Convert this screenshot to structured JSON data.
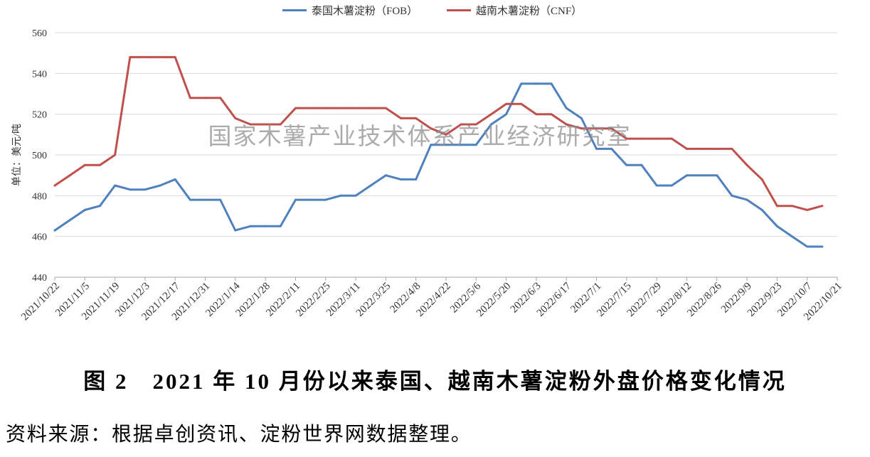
{
  "chart_data": {
    "type": "line",
    "title": "图 2　2021 年 10 月份以来泰国、越南木薯淀粉外盘价格变化情况",
    "xlabel": "",
    "ylabel": "单位：美元/吨",
    "ylim": [
      440,
      560
    ],
    "y_ticks": [
      440,
      460,
      480,
      500,
      520,
      540,
      560
    ],
    "xlim": [
      "2021/10/22",
      "2022/10/21"
    ],
    "x_ticks": [
      "2021/10/22",
      "2021/11/5",
      "2021/11/19",
      "2021/12/3",
      "2021/12/17",
      "2021/12/31",
      "2022/1/14",
      "2022/1/28",
      "2022/2/11",
      "2022/2/25",
      "2022/3/11",
      "2022/3/25",
      "2022/4/8",
      "2022/4/22",
      "2022/5/6",
      "2022/5/20",
      "2022/6/3",
      "2022/6/17",
      "2022/7/1",
      "2022/7/15",
      "2022/7/29",
      "2022/8/12",
      "2022/8/26",
      "2022/9/9",
      "2022/9/23",
      "2022/10/7",
      "2022/10/21"
    ],
    "x": [
      "2021/10/22",
      "2021/10/29",
      "2021/11/5",
      "2021/11/12",
      "2021/11/19",
      "2021/11/26",
      "2021/12/3",
      "2021/12/10",
      "2021/12/17",
      "2021/12/24",
      "2021/12/31",
      "2022/1/7",
      "2022/1/14",
      "2022/1/21",
      "2022/1/28",
      "2022/2/4",
      "2022/2/11",
      "2022/2/18",
      "2022/2/25",
      "2022/3/4",
      "2022/3/11",
      "2022/3/18",
      "2022/3/25",
      "2022/4/1",
      "2022/4/8",
      "2022/4/15",
      "2022/4/22",
      "2022/4/29",
      "2022/5/6",
      "2022/5/13",
      "2022/5/20",
      "2022/5/27",
      "2022/6/3",
      "2022/6/10",
      "2022/6/17",
      "2022/6/24",
      "2022/7/1",
      "2022/7/8",
      "2022/7/15",
      "2022/7/22",
      "2022/7/29",
      "2022/8/5",
      "2022/8/12",
      "2022/8/19",
      "2022/8/26",
      "2022/9/2",
      "2022/9/9",
      "2022/9/16",
      "2022/9/23",
      "2022/9/30",
      "2022/10/7",
      "2022/10/14"
    ],
    "series": [
      {
        "name": "泰国木薯淀粉（FOB）",
        "color": "#4F81BD",
        "values": [
          463,
          468,
          473,
          475,
          485,
          483,
          483,
          485,
          488,
          478,
          478,
          478,
          463,
          465,
          465,
          465,
          478,
          478,
          478,
          480,
          480,
          485,
          490,
          488,
          488,
          505,
          505,
          505,
          505,
          515,
          520,
          535,
          535,
          535,
          523,
          518,
          503,
          503,
          495,
          495,
          485,
          485,
          490,
          490,
          490,
          480,
          478,
          473,
          465,
          460,
          455,
          455
        ]
      },
      {
        "name": "越南木薯淀粉（CNF）",
        "color": "#C0504D",
        "values": [
          485,
          490,
          495,
          495,
          500,
          548,
          548,
          548,
          548,
          528,
          528,
          528,
          518,
          515,
          515,
          515,
          523,
          523,
          523,
          523,
          523,
          523,
          523,
          518,
          518,
          513,
          510,
          515,
          515,
          520,
          525,
          525,
          520,
          520,
          515,
          513,
          513,
          513,
          508,
          508,
          508,
          508,
          503,
          503,
          503,
          503,
          495,
          488,
          475,
          475,
          473,
          475
        ]
      }
    ],
    "legend_position": "top",
    "grid": true,
    "watermark": "国家木薯产业技术体系产业经济研究室"
  },
  "source_note": "资料来源：根据卓创资讯、淀粉世界网数据整理。"
}
